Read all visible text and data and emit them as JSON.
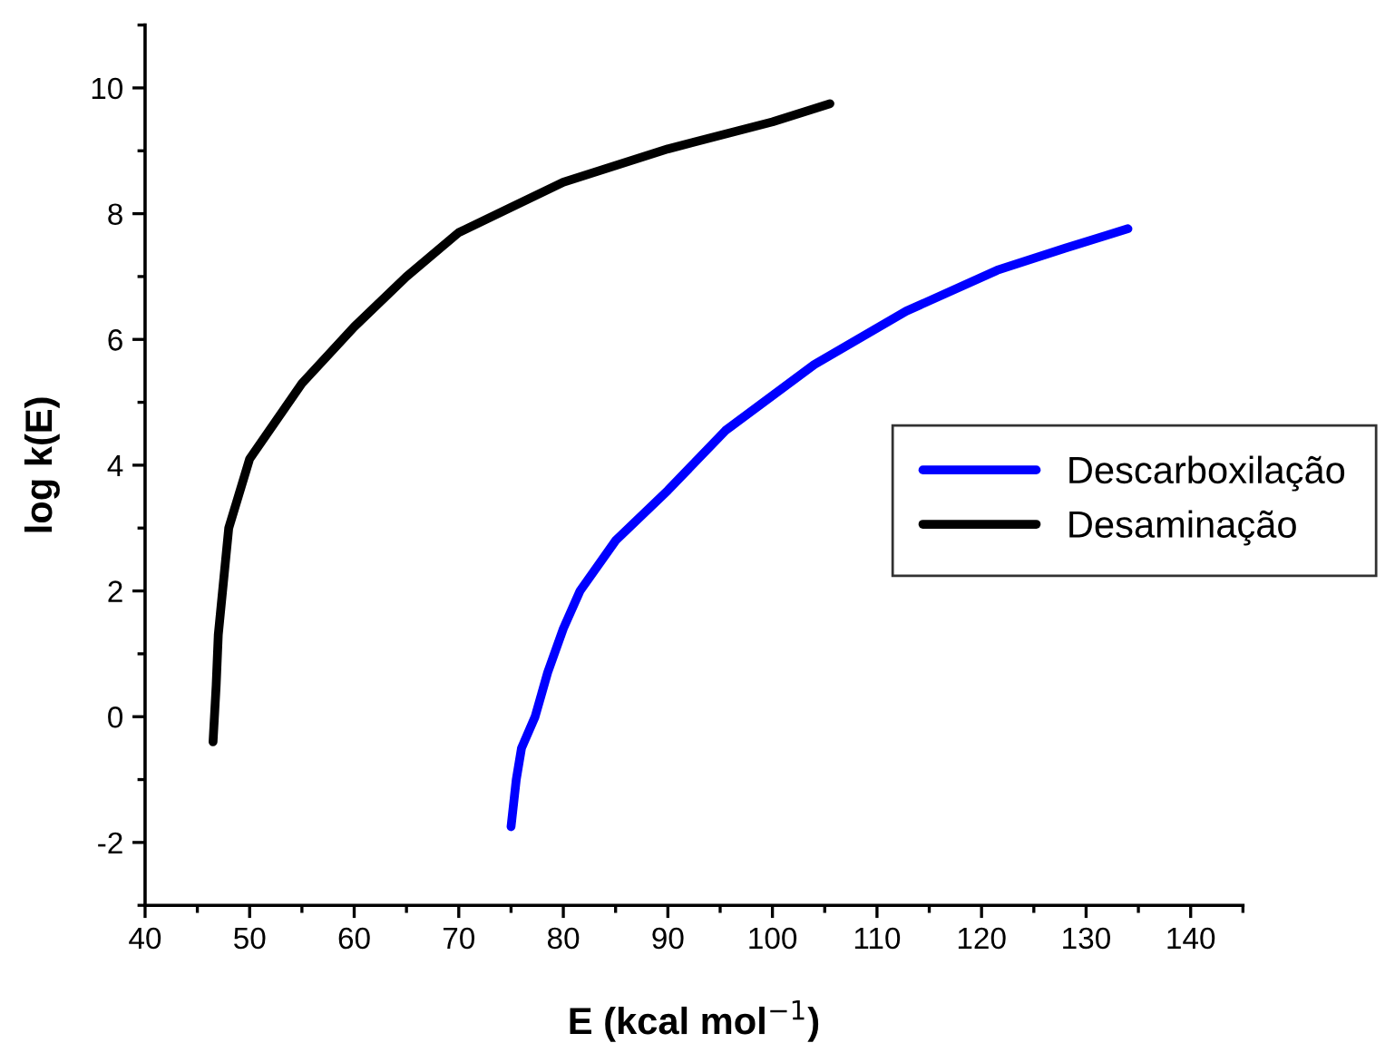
{
  "chart_data": {
    "type": "line",
    "xlabel": "E (kcal mol$^{−1}$)",
    "ylabel": "log k(E)",
    "xlim": [
      40,
      145
    ],
    "ylim": [
      -3,
      11
    ],
    "xticks": [
      40,
      {
        "value": 45,
        "label": null
      },
      50,
      {
        "value": 55,
        "label": null
      },
      60,
      {
        "value": 65,
        "label": null
      },
      70,
      {
        "value": 75,
        "label": null
      },
      80,
      {
        "value": 85,
        "label": null
      },
      90,
      {
        "value": 95,
        "label": null
      },
      100,
      {
        "value": 105,
        "label": null
      },
      110,
      {
        "value": 115,
        "label": null
      },
      120,
      {
        "value": 125,
        "label": null
      },
      130,
      {
        "value": 135,
        "label": null
      },
      140,
      {
        "value": 145,
        "label": null
      }
    ],
    "yticks": [
      {
        "value": -3,
        "label": null
      },
      -2,
      {
        "value": -1,
        "label": null
      },
      0,
      {
        "value": 1,
        "label": null
      },
      2,
      {
        "value": 3,
        "label": null
      },
      4,
      {
        "value": 5,
        "label": null
      },
      6,
      {
        "value": 7,
        "label": null
      },
      8,
      {
        "value": 9,
        "label": null
      },
      10,
      {
        "value": 11,
        "label": null
      }
    ],
    "grid": false,
    "legend": "right",
    "marker": "none",
    "line_style": "solid",
    "series": [
      {
        "name": "Descarboxilação",
        "color": "#0000ff",
        "x": [
          75,
          75.5,
          76,
          77.3,
          78.5,
          80,
          81.6,
          85,
          90,
          95.5,
          104,
          112.8,
          121.5,
          128,
          134
        ],
        "values": [
          -1.75,
          -1.0,
          -0.5,
          0,
          0.7,
          1.4,
          2.0,
          2.8,
          3.6,
          4.55,
          5.6,
          6.45,
          7.1,
          7.45,
          7.76
        ]
      },
      {
        "name": "Desaminação",
        "color": "#000000",
        "x": [
          46.5,
          46.8,
          47,
          48,
          50,
          55,
          60,
          65,
          70,
          75,
          80,
          90,
          100,
          105.5
        ],
        "values": [
          -0.4,
          0.5,
          1.3,
          3.0,
          4.1,
          5.3,
          6.2,
          7.0,
          7.7,
          8.1,
          8.5,
          9.03,
          9.46,
          9.75
        ]
      }
    ]
  }
}
